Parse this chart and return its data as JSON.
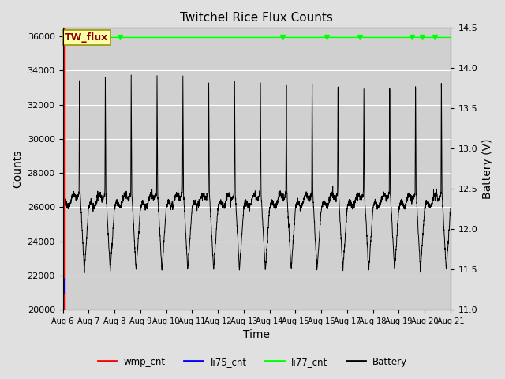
{
  "title": "Twitchel Rice Flux Counts",
  "xlabel": "Time",
  "ylabel_left": "Counts",
  "ylabel_right": "Battery (V)",
  "ylim_left": [
    20000,
    36500
  ],
  "ylim_right": [
    11.0,
    14.5
  ],
  "background_color": "#e0e0e0",
  "plot_bg_color": "#d0d0d0",
  "legend_entries": [
    "wmp_cnt",
    "li75_cnt",
    "li77_cnt",
    "Battery"
  ],
  "legend_colors": [
    "red",
    "blue",
    "green",
    "black"
  ],
  "annotation_text": "TW_flux",
  "annotation_bg": "#ffffaa",
  "annotation_border": "#999900",
  "x_tick_labels": [
    "Aug 6",
    "Aug 7",
    "Aug 8",
    "Aug 9",
    "Aug 10",
    "Aug 11",
    "Aug 12",
    "Aug 13",
    "Aug 14",
    "Aug 15",
    "Aug 16",
    "Aug 17",
    "Aug 18",
    "Aug 19",
    "Aug 20",
    "Aug 21"
  ],
  "yticks_left": [
    20000,
    22000,
    24000,
    26000,
    28000,
    30000,
    32000,
    34000,
    36000
  ],
  "yticks_right": [
    11.0,
    11.5,
    12.0,
    12.5,
    13.0,
    13.5,
    14.0,
    14.5
  ],
  "green_marker_x": [
    0.05,
    2.2,
    8.5,
    10.2,
    11.5,
    13.5,
    13.9,
    14.4
  ],
  "batt_scale_min": 11.0,
  "batt_scale_max": 14.5,
  "counts_scale_min": 20000,
  "counts_scale_max": 36000
}
